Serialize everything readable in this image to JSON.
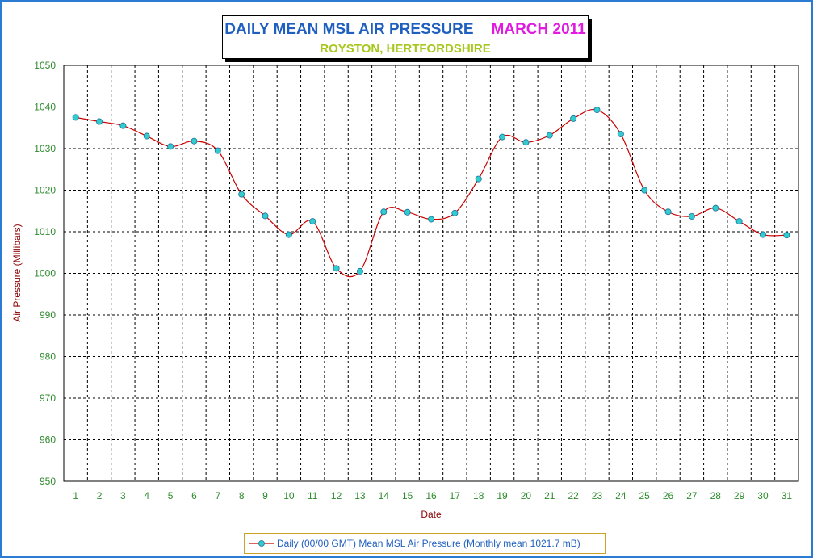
{
  "title": {
    "main": "DAILY MEAN MSL AIR PRESSURE",
    "month": "MARCH 2011",
    "subtitle": "ROYSTON, HERTFORDSHIRE"
  },
  "chart_data": {
    "type": "line",
    "xlabel": "Date",
    "ylabel": "Air Pressure (Millibars)",
    "ylim": [
      950,
      1050
    ],
    "yticks": [
      950,
      960,
      970,
      980,
      990,
      1000,
      1010,
      1020,
      1030,
      1040,
      1050
    ],
    "categories": [
      "1",
      "2",
      "3",
      "4",
      "5",
      "6",
      "7",
      "8",
      "9",
      "10",
      "11",
      "12",
      "13",
      "14",
      "15",
      "16",
      "17",
      "18",
      "19",
      "20",
      "21",
      "22",
      "23",
      "24",
      "25",
      "26",
      "27",
      "28",
      "29",
      "30",
      "31"
    ],
    "series": [
      {
        "name": "Daily (00/00 GMT) Mean MSL Air Pressure (Monthly mean 1021.7 mB)",
        "values": [
          1037.5,
          1036.5,
          1035.5,
          1033.0,
          1030.5,
          1031.8,
          1029.5,
          1019.0,
          1013.8,
          1009.3,
          1012.5,
          1001.2,
          1000.5,
          1014.8,
          1014.7,
          1013.0,
          1014.5,
          1022.7,
          1032.8,
          1031.5,
          1033.2,
          1037.2,
          1039.3,
          1033.5,
          1020.0,
          1014.8,
          1013.7,
          1015.7,
          1012.5,
          1009.3,
          1009.2
        ]
      }
    ],
    "grid": true,
    "legend_position": "bottom",
    "colors": {
      "line": "#cc0000",
      "marker_fill": "#33cccc",
      "marker_stroke": "#1a6fa0",
      "tick_labels": "#2e8b2e",
      "axis_title": "#8b0000",
      "grid": "#000000"
    }
  }
}
